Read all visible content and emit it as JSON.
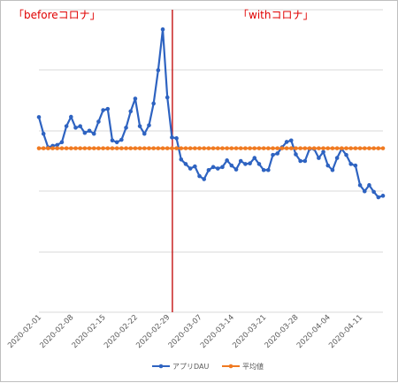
{
  "chart_data": {
    "type": "line",
    "title": "",
    "xlabel": "",
    "ylabel": "",
    "grid": true,
    "legend_position": "bottom",
    "x_start": "2020-02-01",
    "x_end": "2020-04-16",
    "x_tick_labels": [
      "2020-02-01",
      "2020-02-08",
      "2020-02-15",
      "2020-02-22",
      "2020-02-29",
      "2020-03-07",
      "2020-03-14",
      "2020-03-21",
      "2020-03-28",
      "2020-04-04",
      "2020-04-11"
    ],
    "divider_date": "2020-03-01",
    "annotations": [
      {
        "text": "「beforeコロナ」",
        "region": "before"
      },
      {
        "text": "「withコロナ」",
        "region": "after"
      }
    ],
    "series": [
      {
        "name": "アプリDAU",
        "color": "#2e63c1",
        "values": [
          0.645,
          0.59,
          0.545,
          0.55,
          0.553,
          0.562,
          0.615,
          0.646,
          0.61,
          0.615,
          0.593,
          0.6,
          0.59,
          0.63,
          0.668,
          0.672,
          0.568,
          0.562,
          0.57,
          0.61,
          0.664,
          0.706,
          0.615,
          0.59,
          0.618,
          0.69,
          0.8,
          0.935,
          0.71,
          0.578,
          0.575,
          0.505,
          0.49,
          0.475,
          0.482,
          0.45,
          0.44,
          0.47,
          0.48,
          0.475,
          0.48,
          0.502,
          0.485,
          0.472,
          0.5,
          0.49,
          0.492,
          0.51,
          0.49,
          0.47,
          0.47,
          0.52,
          0.525,
          0.545,
          0.563,
          0.568,
          0.522,
          0.5,
          0.5,
          0.54,
          0.54,
          0.51,
          0.53,
          0.485,
          0.47,
          0.51,
          0.54,
          0.52,
          0.49,
          0.485,
          0.42,
          0.4,
          0.42,
          0.398,
          0.38,
          0.385
        ]
      },
      {
        "name": "平均値",
        "color": "#f07a21",
        "values": [
          0.542,
          0.542,
          0.542,
          0.542,
          0.542,
          0.542,
          0.542,
          0.542,
          0.542,
          0.542,
          0.542,
          0.542,
          0.542,
          0.542,
          0.542,
          0.542,
          0.542,
          0.542,
          0.542,
          0.542,
          0.542,
          0.542,
          0.542,
          0.542,
          0.542,
          0.542,
          0.542,
          0.542,
          0.542,
          0.542,
          0.542,
          0.542,
          0.542,
          0.542,
          0.542,
          0.542,
          0.542,
          0.542,
          0.542,
          0.542,
          0.542,
          0.542,
          0.542,
          0.542,
          0.542,
          0.542,
          0.542,
          0.542,
          0.542,
          0.542,
          0.542,
          0.542,
          0.542,
          0.542,
          0.542,
          0.542,
          0.542,
          0.542,
          0.542,
          0.542,
          0.542,
          0.542,
          0.542,
          0.542,
          0.542,
          0.542,
          0.542,
          0.542,
          0.542,
          0.542,
          0.542,
          0.542,
          0.542,
          0.542,
          0.542,
          0.542
        ]
      }
    ]
  }
}
